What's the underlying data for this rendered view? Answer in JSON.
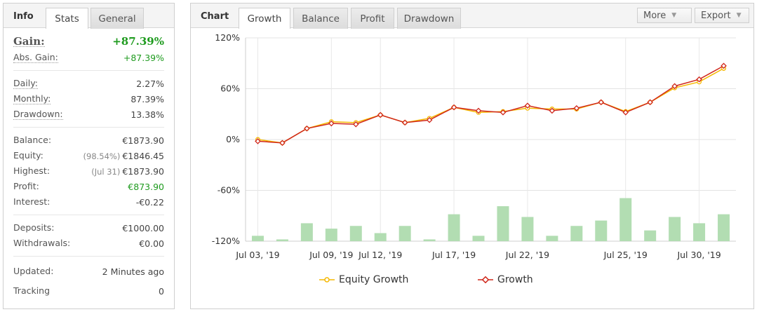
{
  "info_panel": {
    "title": "Info",
    "tabs": [
      {
        "label": "Stats",
        "active": true
      },
      {
        "label": "General",
        "active": false
      }
    ],
    "gain": {
      "label": "Gain:",
      "value": "+87.39%"
    },
    "abs_gain": {
      "label": "Abs. Gain:",
      "value": "+87.39%"
    },
    "daily": {
      "label": "Daily:",
      "value": "2.27%"
    },
    "monthly": {
      "label": "Monthly:",
      "value": "87.39%"
    },
    "drawdown": {
      "label": "Drawdown:",
      "value": "13.38%"
    },
    "balance": {
      "label": "Balance:",
      "value": "€1873.90"
    },
    "equity": {
      "label": "Equity:",
      "sub": "(98.54%)",
      "value": "€1846.45"
    },
    "highest": {
      "label": "Highest:",
      "sub": "(Jul 31)",
      "value": "€1873.90"
    },
    "profit": {
      "label": "Profit:",
      "value": "€873.90"
    },
    "interest": {
      "label": "Interest:",
      "value": "-€0.22"
    },
    "deposits": {
      "label": "Deposits:",
      "value": "€1000.00"
    },
    "withdrawals": {
      "label": "Withdrawals:",
      "value": "€0.00"
    },
    "updated": {
      "label": "Updated:",
      "value": "2 Minutes ago"
    },
    "tracking": {
      "label": "Tracking",
      "value": "0"
    }
  },
  "chart_panel": {
    "title": "Chart",
    "tabs": [
      {
        "label": "Growth",
        "active": true
      },
      {
        "label": "Balance",
        "active": false
      },
      {
        "label": "Profit",
        "active": false
      },
      {
        "label": "Drawdown",
        "active": false
      }
    ],
    "more_label": "More",
    "export_label": "Export"
  },
  "colors": {
    "equity": "#f5b800",
    "growth": "#d0281c",
    "bars": "#b2ddb2",
    "gain_green": "#1f9b1f"
  },
  "chart_data": {
    "type": "line",
    "ylim": [
      -120,
      120
    ],
    "yticks": [
      120,
      60,
      0,
      -60,
      -120
    ],
    "ytick_labels": [
      "120%",
      "60%",
      "0%",
      "-60%",
      "-120%"
    ],
    "xtick_labels": [
      "Jul 03, '19",
      "Jul 09, '19",
      "Jul 12, '19",
      "Jul 17, '19",
      "Jul 22, '19",
      "Jul 25, '19",
      "Jul 30, '19"
    ],
    "xtick_indices": [
      0,
      3,
      5,
      8,
      11,
      15,
      18
    ],
    "grid": true,
    "legend_position": "bottom",
    "series": [
      {
        "name": "Equity Growth",
        "values": [
          0,
          -4,
          13,
          21,
          20,
          29,
          20,
          25,
          38,
          32,
          33,
          37,
          36,
          36,
          44,
          33,
          44,
          61,
          68,
          84
        ]
      },
      {
        "name": "Growth",
        "values": [
          -2,
          -4,
          13,
          19,
          18,
          29,
          20,
          23,
          38,
          34,
          32,
          40,
          34,
          37,
          44,
          32,
          44,
          63,
          71,
          87
        ]
      }
    ],
    "bars": {
      "ylim": [
        0,
        50
      ],
      "values": [
        6,
        2,
        20,
        14,
        17,
        9,
        17,
        2,
        30,
        6,
        39,
        27,
        6,
        17,
        23,
        48,
        12,
        27,
        20,
        30
      ]
    }
  }
}
